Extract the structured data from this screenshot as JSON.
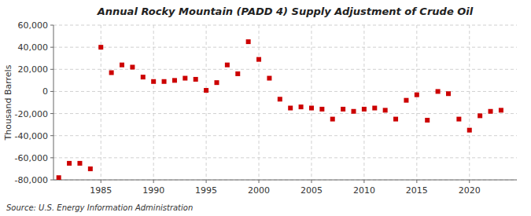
{
  "chart_data": {
    "type": "scatter",
    "title": "Annual Rocky Mountain (PADD 4) Supply Adjustment of Crude Oil",
    "ylabel": "Thousand Barrels",
    "annotations": [
      "Source: U.S. Energy Information Administration"
    ],
    "color": "#cc0000",
    "marker": "square",
    "grid": true,
    "x": [
      1981,
      1982,
      1983,
      1984,
      1985,
      1986,
      1987,
      1988,
      1989,
      1990,
      1991,
      1992,
      1993,
      1994,
      1995,
      1996,
      1997,
      1998,
      1999,
      2000,
      2001,
      2002,
      2003,
      2004,
      2005,
      2006,
      2007,
      2008,
      2009,
      2010,
      2011,
      2012,
      2013,
      2014,
      2015,
      2016,
      2017,
      2018,
      2019,
      2020,
      2021,
      2022,
      2023
    ],
    "values": [
      -78000,
      -65000,
      -65000,
      -70000,
      40000,
      17000,
      24000,
      22000,
      13000,
      9000,
      9000,
      10000,
      12000,
      11000,
      1000,
      8000,
      24000,
      16000,
      45000,
      29000,
      12000,
      -7000,
      -15000,
      -14000,
      -15000,
      -16000,
      -25000,
      -16000,
      -18000,
      -16000,
      -15000,
      -17000,
      -25000,
      -8000,
      -3000,
      -26000,
      0,
      -2000,
      -25000,
      -35000,
      -22000,
      -18000,
      -17000
    ],
    "xlim": [
      1980.5,
      2024.5
    ],
    "xticks": [
      1985,
      1990,
      1995,
      2000,
      2005,
      2010,
      2015,
      2020
    ],
    "ylim": [
      -80000,
      60000
    ],
    "yticks": [
      {
        "value": -80000,
        "label": "-80,000"
      },
      {
        "value": -60000,
        "label": "-60,000"
      },
      {
        "value": -40000,
        "label": "-40,000"
      },
      {
        "value": -20000,
        "label": "-20,000"
      },
      0,
      {
        "value": 20000,
        "label": "20,000"
      },
      {
        "value": 40000,
        "label": "40,000"
      },
      {
        "value": 60000,
        "label": "60,000"
      }
    ]
  }
}
